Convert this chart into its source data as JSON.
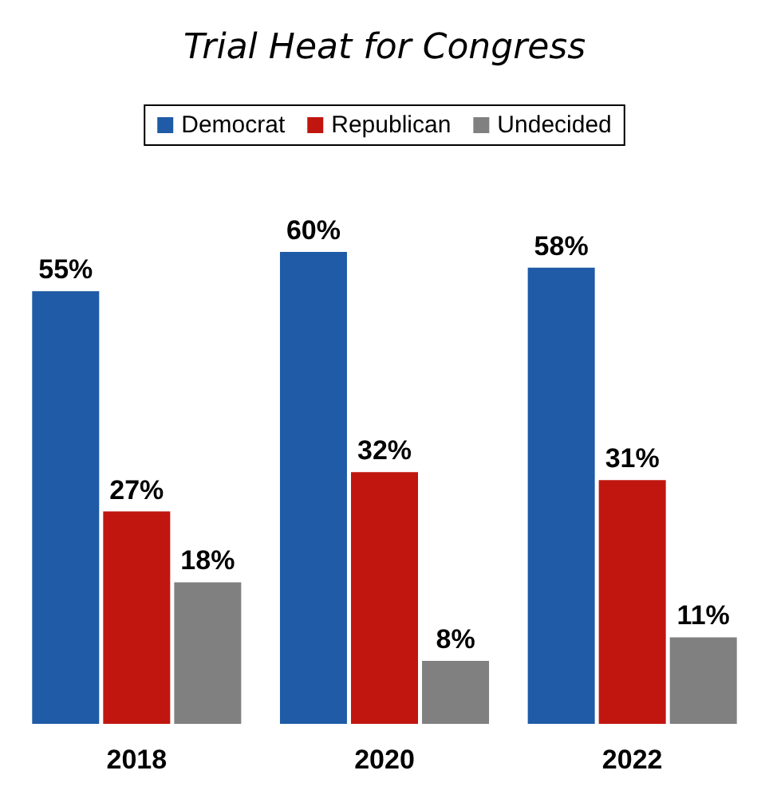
{
  "chart_data": {
    "type": "bar",
    "title": "Trial Heat for Congress",
    "categories": [
      "2018",
      "2020",
      "2022"
    ],
    "series": [
      {
        "name": "Democrat",
        "color": "#1f5ba6",
        "values": [
          55,
          60,
          58
        ],
        "value_labels": [
          "55%",
          "60%",
          "58%"
        ]
      },
      {
        "name": "Republican",
        "color": "#c0160f",
        "values": [
          27,
          32,
          31
        ],
        "value_labels": [
          "27%",
          "32%",
          "31%"
        ]
      },
      {
        "name": "Undecided",
        "color": "#808080",
        "values": [
          18,
          8,
          11
        ],
        "value_labels": [
          "18%",
          "8%",
          "11%"
        ]
      }
    ],
    "legend": "top",
    "grid": false
  }
}
